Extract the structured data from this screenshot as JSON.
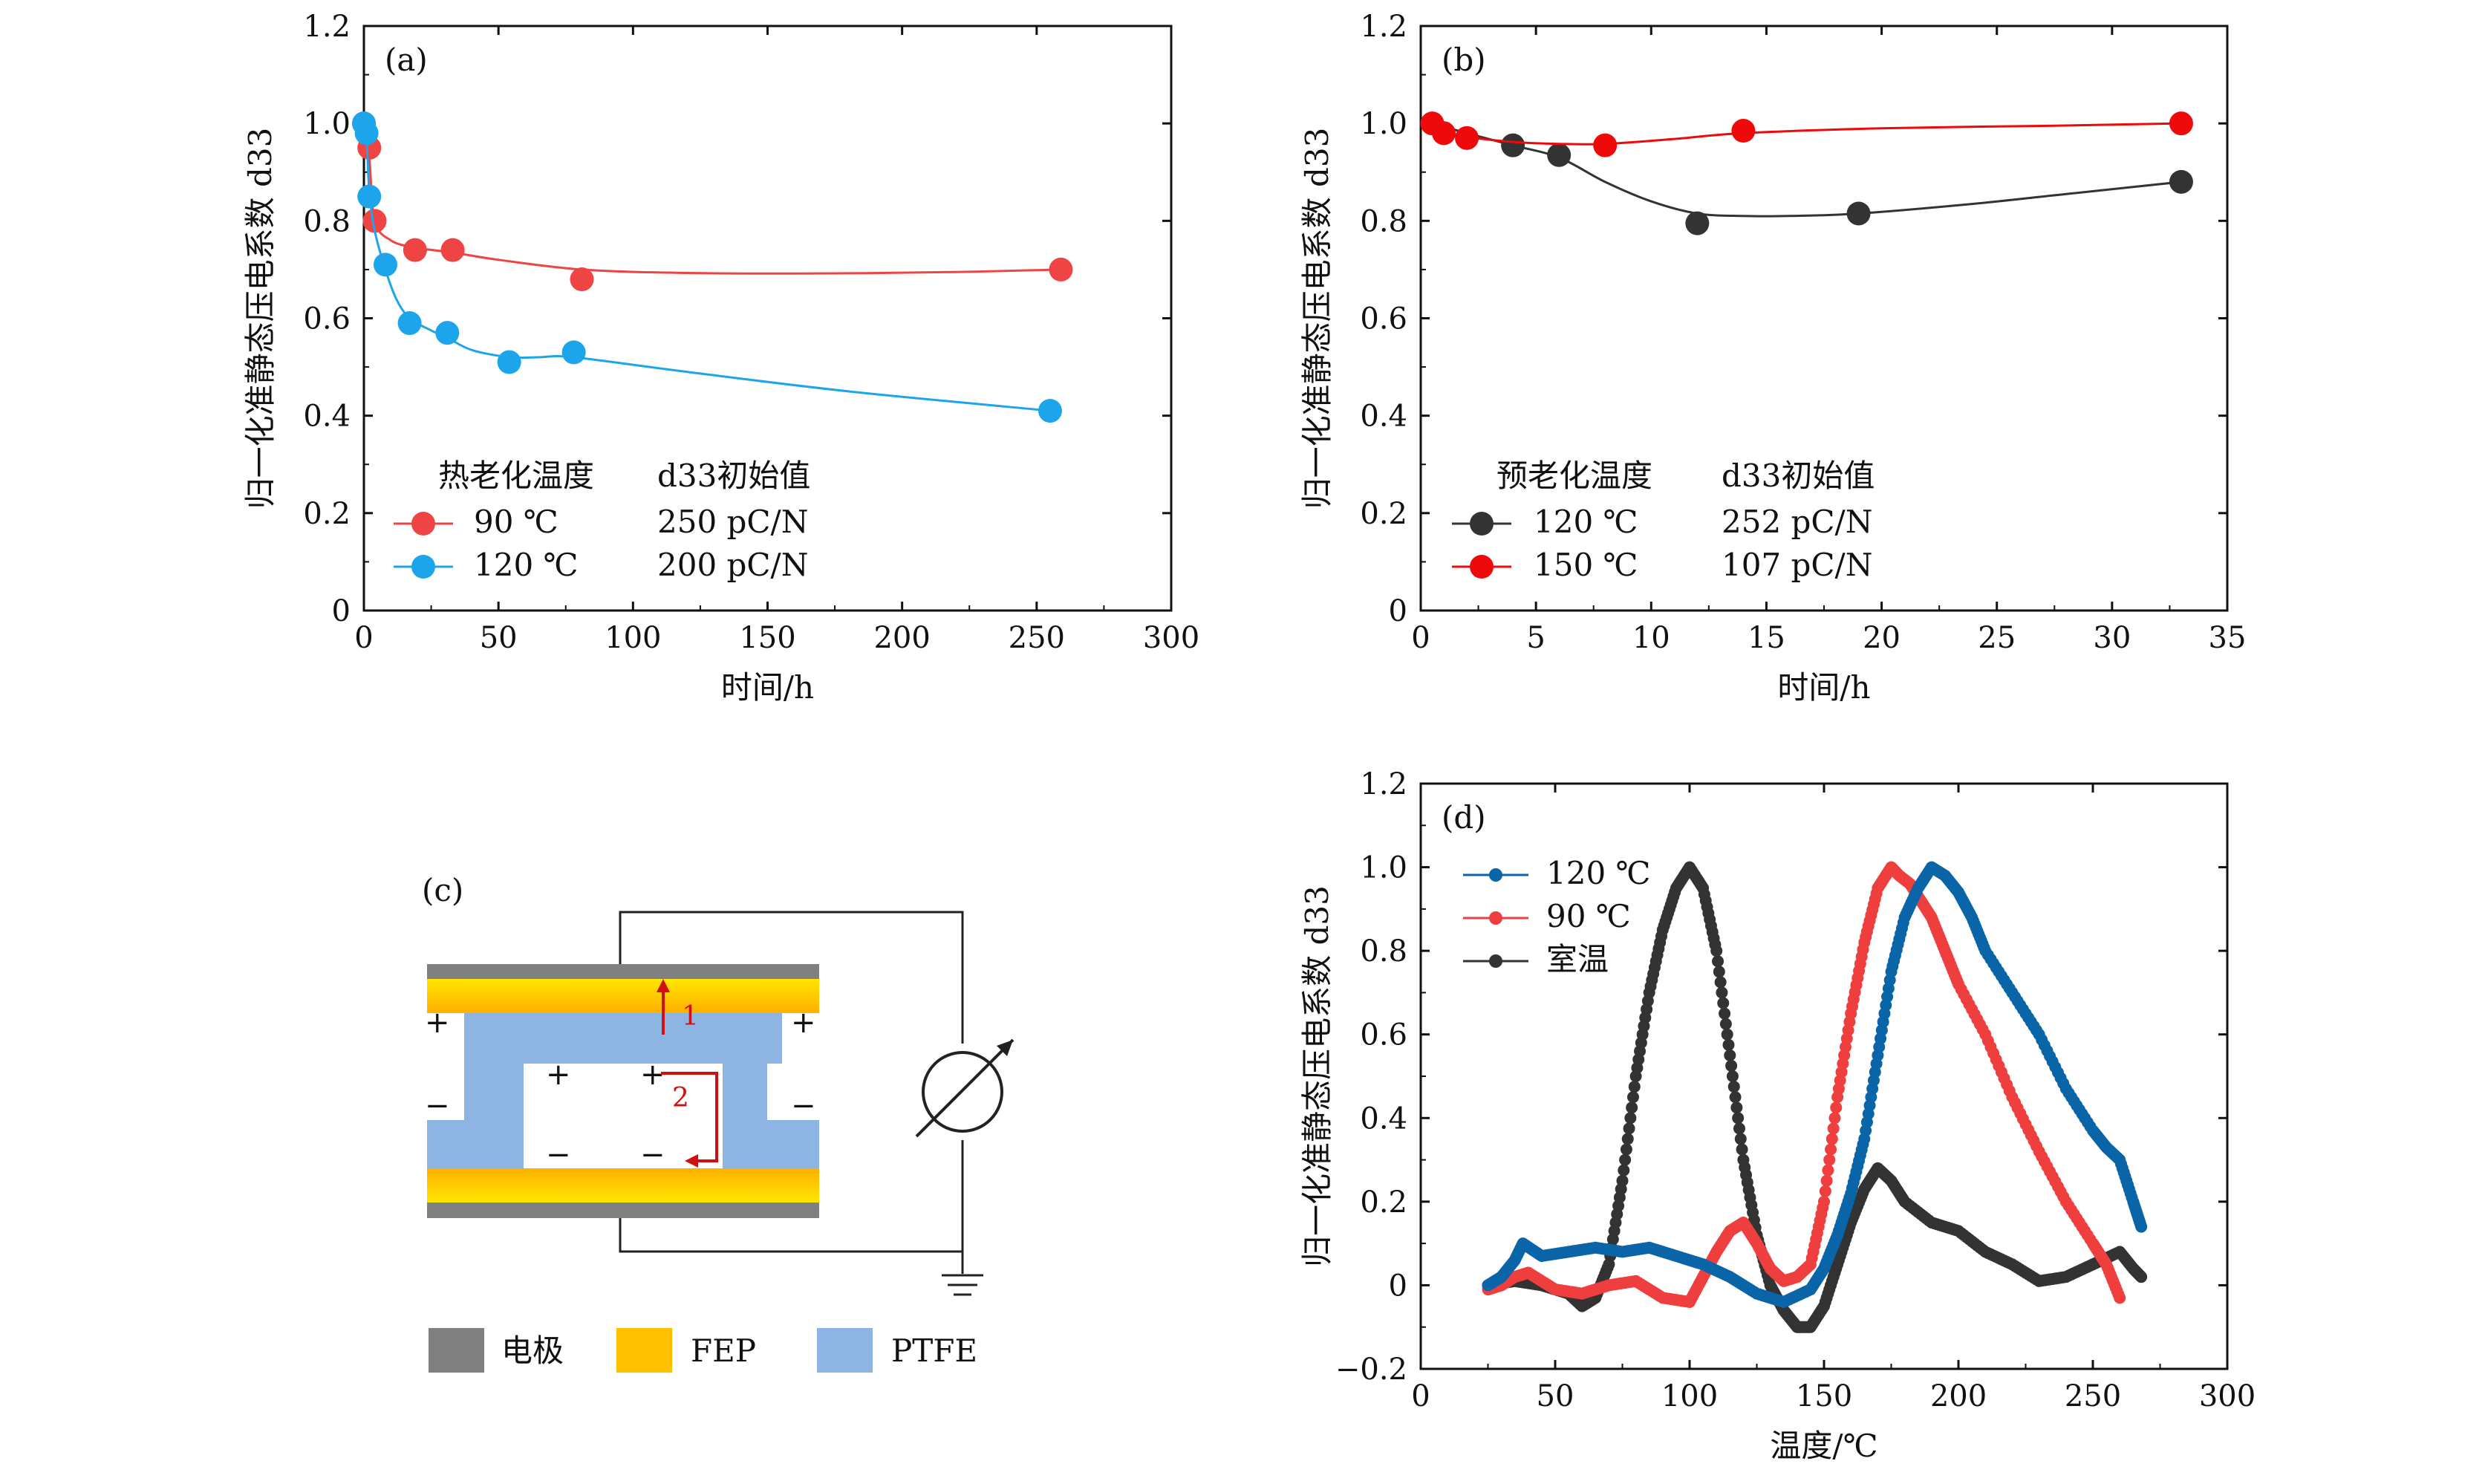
{
  "chart_data": [
    {
      "panel": "(a)",
      "type": "line",
      "xlabel": "时间/h",
      "ylabel": "归一化准静态压电系数 d33",
      "xlim": [
        0,
        300
      ],
      "ylim": [
        0,
        1.2
      ],
      "xticks": [
        0,
        50,
        100,
        150,
        200,
        250,
        300
      ],
      "yticks": [
        0,
        0.2,
        0.4,
        0.6,
        0.8,
        1.0,
        1.2
      ],
      "legend": {
        "header_left": "热老化温度",
        "header_right": "d33初始值"
      },
      "series": [
        {
          "name": "90 ℃",
          "value_label": "250 pC/N",
          "color": "#ef4444",
          "x": [
            0,
            2,
            4,
            19,
            33,
            81,
            259
          ],
          "y": [
            1.0,
            0.95,
            0.8,
            0.74,
            0.74,
            0.68,
            0.7
          ],
          "curve_x": [
            0,
            2,
            4,
            10,
            19,
            33,
            50,
            81,
            120,
            170,
            220,
            259
          ],
          "curve_y": [
            1.0,
            0.93,
            0.8,
            0.76,
            0.745,
            0.735,
            0.72,
            0.7,
            0.693,
            0.692,
            0.695,
            0.7
          ]
        },
        {
          "name": "120 ℃",
          "value_label": "200 pC/N",
          "color": "#1ca5ea",
          "x": [
            0,
            1,
            2,
            8,
            17,
            31,
            54,
            78,
            255
          ],
          "y": [
            1.0,
            0.98,
            0.85,
            0.71,
            0.59,
            0.57,
            0.51,
            0.53,
            0.41
          ],
          "curve_x": [
            0,
            1,
            2,
            4,
            8,
            12,
            17,
            25,
            31,
            40,
            54,
            65,
            78,
            120,
            180,
            255
          ],
          "curve_y": [
            1.0,
            0.97,
            0.86,
            0.78,
            0.7,
            0.64,
            0.6,
            0.575,
            0.56,
            0.535,
            0.52,
            0.52,
            0.52,
            0.49,
            0.45,
            0.41
          ]
        }
      ]
    },
    {
      "panel": "(b)",
      "type": "line",
      "xlabel": "时间/h",
      "ylabel": "归一化准静态压电系数 d33",
      "xlim": [
        0,
        35
      ],
      "ylim": [
        0,
        1.2
      ],
      "xticks": [
        0,
        5,
        10,
        15,
        20,
        25,
        30,
        35
      ],
      "yticks": [
        0,
        0.2,
        0.4,
        0.6,
        0.8,
        1.0,
        1.2
      ],
      "legend": {
        "header_left": "预老化温度",
        "header_right": "d33初始值"
      },
      "series": [
        {
          "name": "120 ℃",
          "value_label": "252 pC/N",
          "color": "#333333",
          "x": [
            4,
            6,
            12,
            19,
            33
          ],
          "y": [
            0.955,
            0.935,
            0.795,
            0.815,
            0.88
          ],
          "curve_x": [
            0.5,
            2,
            4,
            6,
            8,
            10,
            12,
            14,
            16,
            19,
            24,
            28,
            33
          ],
          "curve_y": [
            1.0,
            0.98,
            0.955,
            0.93,
            0.88,
            0.84,
            0.815,
            0.81,
            0.81,
            0.815,
            0.835,
            0.855,
            0.88
          ]
        },
        {
          "name": "150 ℃",
          "value_label": "107 pC/N",
          "color": "#ee0a0a",
          "x": [
            0.5,
            1,
            2,
            8,
            14,
            33
          ],
          "y": [
            1.0,
            0.98,
            0.97,
            0.955,
            0.985,
            1.0
          ],
          "curve_x": [
            0.5,
            1,
            2,
            4,
            6,
            8,
            11,
            14,
            20,
            27,
            33
          ],
          "curve_y": [
            1.0,
            0.98,
            0.972,
            0.962,
            0.958,
            0.958,
            0.968,
            0.98,
            0.99,
            0.995,
            1.0
          ]
        }
      ]
    },
    {
      "panel": "(d)",
      "type": "scatter",
      "xlabel": "温度/℃",
      "ylabel": "归一化准静态压电系数 d33",
      "xlim": [
        0,
        300
      ],
      "ylim": [
        -0.2,
        1.2
      ],
      "xticks": [
        0,
        50,
        100,
        150,
        200,
        250,
        300
      ],
      "yticks": [
        -0.2,
        0,
        0.2,
        0.4,
        0.6,
        0.8,
        1.0,
        1.2
      ],
      "series": [
        {
          "name": "120 ℃",
          "color": "#0a65a8",
          "x": [
            25,
            30,
            35,
            38,
            45,
            55,
            65,
            75,
            85,
            95,
            105,
            115,
            125,
            135,
            145,
            150,
            155,
            160,
            165,
            170,
            175,
            180,
            185,
            190,
            195,
            200,
            205,
            210,
            220,
            230,
            240,
            250,
            255,
            260,
            265,
            268
          ],
          "y": [
            0.0,
            0.02,
            0.06,
            0.1,
            0.07,
            0.08,
            0.09,
            0.08,
            0.09,
            0.07,
            0.05,
            0.02,
            -0.02,
            -0.04,
            -0.01,
            0.04,
            0.12,
            0.22,
            0.35,
            0.55,
            0.75,
            0.88,
            0.95,
            1.0,
            0.98,
            0.94,
            0.88,
            0.8,
            0.7,
            0.6,
            0.47,
            0.37,
            0.33,
            0.3,
            0.2,
            0.14
          ]
        },
        {
          "name": "90 ℃",
          "color": "#ef3e3e",
          "x": [
            25,
            30,
            35,
            40,
            50,
            60,
            70,
            80,
            90,
            100,
            105,
            110,
            115,
            120,
            125,
            130,
            135,
            140,
            145,
            150,
            155,
            160,
            165,
            170,
            175,
            178,
            182,
            186,
            190,
            195,
            200,
            210,
            220,
            230,
            240,
            250,
            255,
            260
          ],
          "y": [
            -0.01,
            0.0,
            0.02,
            0.03,
            -0.01,
            -0.02,
            0.0,
            0.01,
            -0.03,
            -0.04,
            0.02,
            0.08,
            0.13,
            0.15,
            0.1,
            0.04,
            0.01,
            0.02,
            0.05,
            0.2,
            0.45,
            0.65,
            0.82,
            0.95,
            1.0,
            0.98,
            0.96,
            0.92,
            0.88,
            0.8,
            0.72,
            0.6,
            0.45,
            0.32,
            0.2,
            0.1,
            0.05,
            -0.03
          ]
        },
        {
          "name": "室温",
          "color": "#333333",
          "x": [
            25,
            35,
            45,
            55,
            60,
            65,
            70,
            75,
            80,
            85,
            90,
            95,
            100,
            105,
            110,
            115,
            120,
            125,
            130,
            135,
            140,
            145,
            150,
            155,
            160,
            165,
            170,
            175,
            180,
            190,
            200,
            210,
            220,
            230,
            240,
            250,
            260,
            265,
            268
          ],
          "y": [
            0.0,
            0.01,
            0.0,
            -0.02,
            -0.05,
            -0.03,
            0.05,
            0.25,
            0.5,
            0.7,
            0.85,
            0.95,
            1.0,
            0.95,
            0.8,
            0.55,
            0.3,
            0.12,
            0.0,
            -0.06,
            -0.1,
            -0.1,
            -0.05,
            0.05,
            0.15,
            0.23,
            0.28,
            0.25,
            0.2,
            0.15,
            0.13,
            0.08,
            0.05,
            0.01,
            0.02,
            0.05,
            0.08,
            0.04,
            0.02
          ]
        }
      ]
    }
  ],
  "diagram": {
    "panel": "(c)",
    "arrow1_label": "1",
    "arrow2_label": "2",
    "plus_sign": "+",
    "minus_sign": "−",
    "legend": [
      {
        "label": "电极",
        "color": "#808080"
      },
      {
        "label": "FEP",
        "color": "#ffc000"
      },
      {
        "label": "PTFE",
        "color": "#8eb4e3"
      }
    ]
  }
}
